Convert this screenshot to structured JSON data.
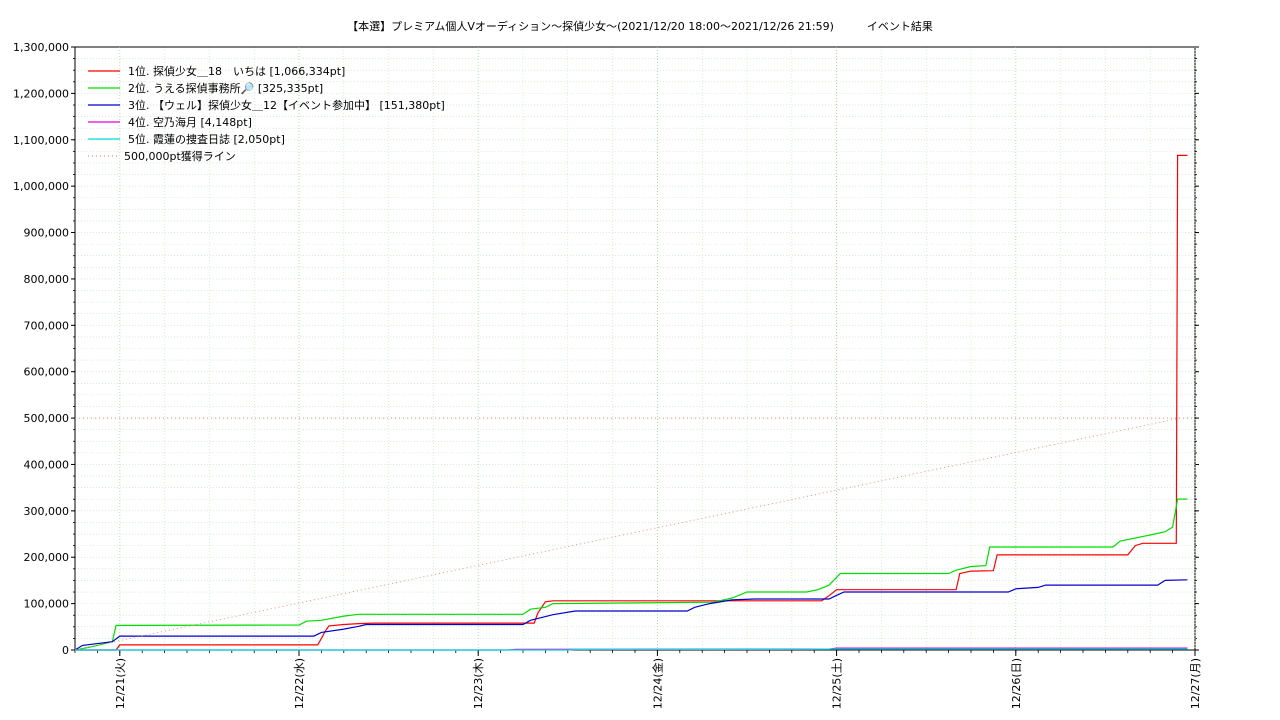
{
  "chart_data": {
    "type": "line",
    "title": "【本選】プレミアム個人Vオーディション〜探偵少女～(2021/12/20 18:00～2021/12/26 21:59)　　　イベント結果",
    "xlabel": "",
    "ylabel": "",
    "ylim": [
      0,
      1300000
    ],
    "xlim": [
      "12/20 18:00",
      "12/27 00:00"
    ],
    "grid": true,
    "legend_position": "top-left",
    "x_tick_labels": [
      "12/21(火)",
      "12/22(水)",
      "12/23(木)",
      "12/24(金)",
      "12/25(土)",
      "12/26(日)",
      "12/27(月)"
    ],
    "y_tick_labels": [
      "0",
      "100,000",
      "200,000",
      "300,000",
      "400,000",
      "500,000",
      "600,000",
      "700,000",
      "800,000",
      "900,000",
      "1,000,000",
      "1,100,000",
      "1,200,000",
      "1,300,000"
    ],
    "series": [
      {
        "name": "1位. 探偵少女＿18　いちは [1,066,334pt]",
        "color": "#ff0000",
        "points": [
          [
            "12/20 18:00",
            0
          ],
          [
            "12/20 23:30",
            0
          ],
          [
            "12/21 00:00",
            11000
          ],
          [
            "12/22 02:30",
            11000
          ],
          [
            "12/22 03:00",
            25000
          ],
          [
            "12/22 03:30",
            40000
          ],
          [
            "12/22 04:00",
            52000
          ],
          [
            "12/22 06:00",
            55000
          ],
          [
            "12/22 08:00",
            57000
          ],
          [
            "12/22 10:00",
            58000
          ],
          [
            "12/23 07:30",
            58000
          ],
          [
            "12/23 08:00",
            80000
          ],
          [
            "12/23 09:00",
            104000
          ],
          [
            "12/23 10:00",
            106000
          ],
          [
            "12/24 22:00",
            106000
          ],
          [
            "12/24 23:00",
            117000
          ],
          [
            "12/25 00:00",
            130000
          ],
          [
            "12/25 16:00",
            130000
          ],
          [
            "12/25 16:30",
            165000
          ],
          [
            "12/25 18:00",
            170000
          ],
          [
            "12/25 21:00",
            171000
          ],
          [
            "12/25 21:30",
            205000
          ],
          [
            "12/26 15:00",
            205000
          ],
          [
            "12/26 16:00",
            225000
          ],
          [
            "12/26 17:00",
            230000
          ],
          [
            "12/26 21:30",
            230000
          ],
          [
            "12/26 21:40",
            1066334
          ],
          [
            "12/26 22:59",
            1066334
          ]
        ]
      },
      {
        "name": "2位. うえる探偵事務所🔎 [325,335pt]",
        "color": "#00dd00",
        "points": [
          [
            "12/20 18:00",
            0
          ],
          [
            "12/20 19:00",
            3000
          ],
          [
            "12/20 21:00",
            10000
          ],
          [
            "12/20 23:00",
            18000
          ],
          [
            "12/20 23:30",
            53000
          ],
          [
            "12/22 00:00",
            54000
          ],
          [
            "12/22 01:00",
            62000
          ],
          [
            "12/22 03:00",
            64000
          ],
          [
            "12/22 06:00",
            73000
          ],
          [
            "12/22 08:00",
            77000
          ],
          [
            "12/23 06:00",
            77000
          ],
          [
            "12/23 07:00",
            88000
          ],
          [
            "12/23 09:00",
            92000
          ],
          [
            "12/23 10:00",
            100000
          ],
          [
            "12/24 07:30",
            103000
          ],
          [
            "12/24 10:00",
            112000
          ],
          [
            "12/24 12:00",
            125000
          ],
          [
            "12/24 20:00",
            125000
          ],
          [
            "12/24 21:30",
            130000
          ],
          [
            "12/24 23:00",
            140000
          ],
          [
            "12/25 00:30",
            165000
          ],
          [
            "12/25 15:00",
            165000
          ],
          [
            "12/25 16:00",
            172000
          ],
          [
            "12/25 18:00",
            180000
          ],
          [
            "12/25 20:00",
            182000
          ],
          [
            "12/25 20:30",
            222000
          ],
          [
            "12/26 13:00",
            222000
          ],
          [
            "12/26 14:00",
            235000
          ],
          [
            "12/26 18:00",
            248000
          ],
          [
            "12/26 20:00",
            255000
          ],
          [
            "12/26 21:00",
            265000
          ],
          [
            "12/26 21:40",
            325335
          ],
          [
            "12/26 22:59",
            325335
          ]
        ]
      },
      {
        "name": "3位. 【ウェル】探偵少女＿12【イベント参加中】 [151,380pt]",
        "color": "#0000cc",
        "points": [
          [
            "12/20 18:00",
            0
          ],
          [
            "12/20 19:00",
            10000
          ],
          [
            "12/20 23:00",
            18000
          ],
          [
            "12/21 00:00",
            30000
          ],
          [
            "12/22 02:00",
            30000
          ],
          [
            "12/22 03:00",
            38000
          ],
          [
            "12/22 06:00",
            45000
          ],
          [
            "12/22 08:00",
            51000
          ],
          [
            "12/22 09:00",
            55000
          ],
          [
            "12/23 06:00",
            55000
          ],
          [
            "12/23 07:00",
            64000
          ],
          [
            "12/23 10:00",
            76000
          ],
          [
            "12/23 13:00",
            84000
          ],
          [
            "12/24 04:00",
            84000
          ],
          [
            "12/24 05:00",
            92000
          ],
          [
            "12/24 07:00",
            100000
          ],
          [
            "12/24 10:00",
            108000
          ],
          [
            "12/24 13:00",
            110000
          ],
          [
            "12/24 23:00",
            110000
          ],
          [
            "12/25 00:00",
            118000
          ],
          [
            "12/25 01:00",
            125000
          ],
          [
            "12/25 23:00",
            125000
          ],
          [
            "12/26 00:00",
            132000
          ],
          [
            "12/26 03:00",
            135000
          ],
          [
            "12/26 04:00",
            140000
          ],
          [
            "12/26 19:00",
            140000
          ],
          [
            "12/26 20:00",
            150000
          ],
          [
            "12/26 22:59",
            151380
          ]
        ]
      },
      {
        "name": "4位. 空乃海月 [4,148pt]",
        "color": "#dd00dd",
        "points": [
          [
            "12/20 18:00",
            0
          ],
          [
            "12/23 04:00",
            0
          ],
          [
            "12/23 05:00",
            1500
          ],
          [
            "12/24 23:00",
            2000
          ],
          [
            "12/25 00:00",
            4148
          ],
          [
            "12/26 22:59",
            4148
          ]
        ]
      },
      {
        "name": "5位. 霞蓮の捜査日誌 [2,050pt]",
        "color": "#00dddd",
        "points": [
          [
            "12/20 18:00",
            0
          ],
          [
            "12/23 12:00",
            0
          ],
          [
            "12/23 13:00",
            1000
          ],
          [
            "12/24 20:00",
            1500
          ],
          [
            "12/25 00:00",
            2050
          ],
          [
            "12/26 22:59",
            2050
          ]
        ]
      },
      {
        "name": "500,000pt獲得ライン",
        "color": "#ff8888",
        "dotted": true,
        "points": [
          [
            "12/20 18:00",
            0
          ],
          [
            "12/26 21:59",
            500000
          ]
        ]
      }
    ]
  }
}
